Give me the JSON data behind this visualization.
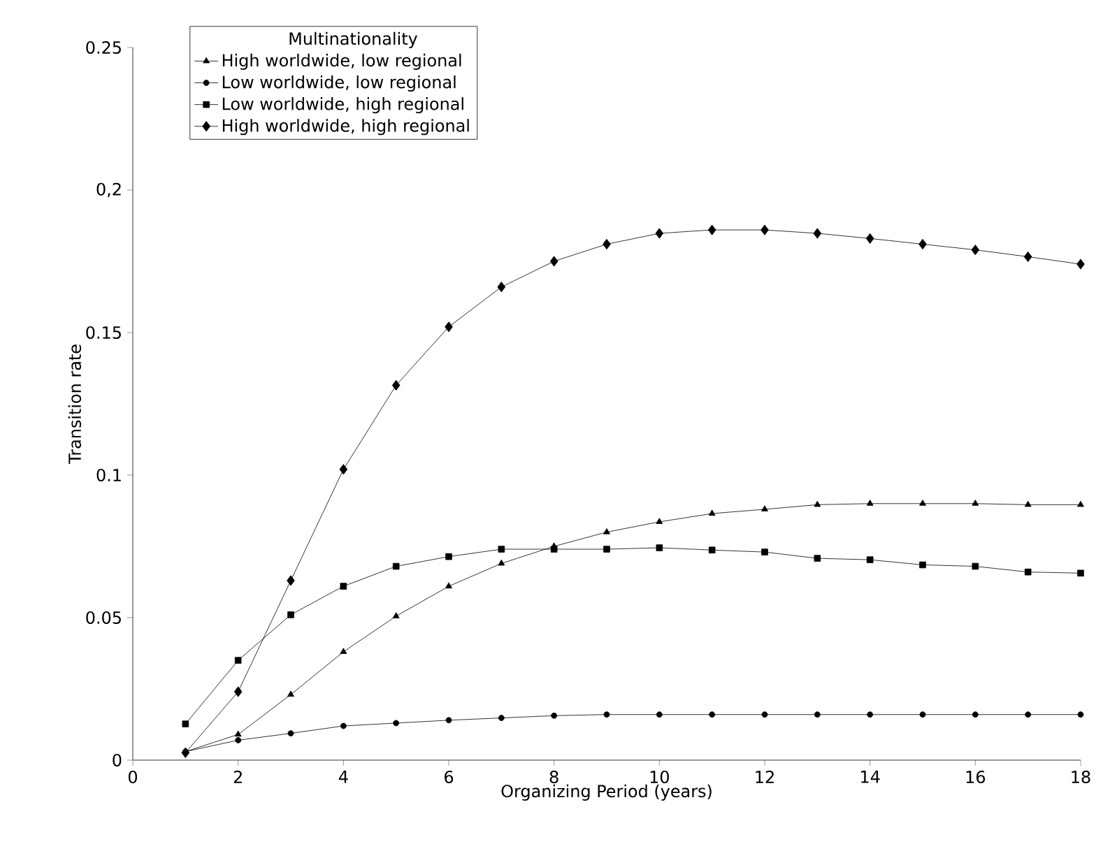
{
  "chart_data": {
    "type": "line",
    "xlabel": "Organizing Period (years)",
    "ylabel": "Transition rate",
    "legend_title": "Multinationality",
    "legend": "top left",
    "x": [
      1,
      2,
      3,
      4,
      5,
      6,
      7,
      8,
      9,
      10,
      11,
      12,
      13,
      14,
      15,
      16,
      17,
      18
    ],
    "xlim": [
      0,
      18
    ],
    "xticks": [
      0,
      2,
      4,
      6,
      8,
      10,
      12,
      14,
      16,
      18
    ],
    "ylim": [
      0,
      0.25
    ],
    "yticks": [
      0,
      0.05,
      0.1,
      0.15,
      {
        "value": 0.2,
        "label": "0,2"
      },
      0.25
    ],
    "series": [
      {
        "name": "High worldwide, low regional",
        "color": "#000000",
        "marker": "triangle",
        "values": [
          0.003,
          0.009,
          0.023,
          0.038,
          0.0505,
          0.061,
          0.069,
          0.075,
          0.08,
          0.0836,
          0.0865,
          0.088,
          0.0896,
          0.09,
          0.09,
          0.09,
          0.0896,
          0.0896
        ]
      },
      {
        "name": "Low worldwide, low regional",
        "color": "#000000",
        "marker": "circle",
        "values": [
          0.003,
          0.007,
          0.0094,
          0.012,
          0.013,
          0.014,
          0.0148,
          0.0156,
          0.016,
          0.016,
          0.016,
          0.016,
          0.016,
          0.016,
          0.016,
          0.016,
          0.016,
          0.016
        ]
      },
      {
        "name": "Low worldwide, high regional",
        "color": "#000000",
        "marker": "square",
        "values": [
          0.0127,
          0.035,
          0.051,
          0.061,
          0.068,
          0.0714,
          0.074,
          0.074,
          0.074,
          0.0745,
          0.0737,
          0.073,
          0.0708,
          0.0703,
          0.0685,
          0.068,
          0.066,
          0.0656
        ]
      },
      {
        "name": "High worldwide, high regional",
        "color": "#000000",
        "marker": "diamond",
        "values": [
          0.0026,
          0.024,
          0.063,
          0.102,
          0.1315,
          0.152,
          0.166,
          0.175,
          0.181,
          0.1848,
          0.186,
          0.186,
          0.1848,
          0.183,
          0.181,
          0.179,
          0.1766,
          0.174
        ]
      }
    ]
  }
}
